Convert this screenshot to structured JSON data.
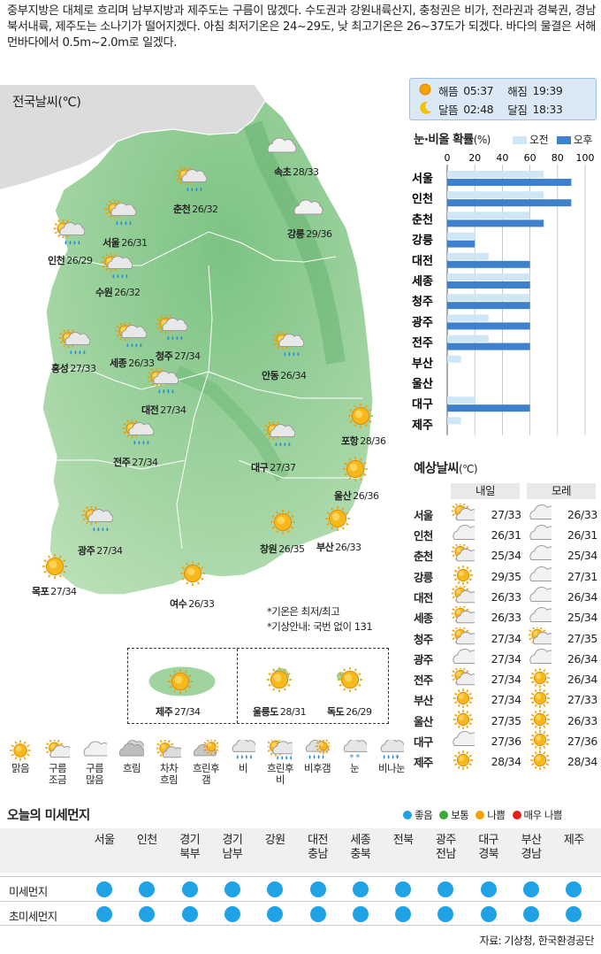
{
  "intro": "중부지방은 대체로 흐리며 남부지방과 제주도는 구름이 많겠다. 수도권과 강원내륙산지, 충청권은 비가, 전라권과 경북권, 경남북서내륙, 제주도는 소나기가 떨어지겠다. 아침 최저기온은 24~29도, 낮 최고기온은 26~37도가 되겠다. 바다의 물결은 서해 먼바다에서 0.5m~2.0m로 일겠다.",
  "map": {
    "title": "전국날씨(℃)",
    "cities": [
      {
        "name": "속초",
        "temp": "28/33",
        "icon": "cloudy"
      },
      {
        "name": "춘천",
        "temp": "26/32",
        "icon": "sun-cloud-rain"
      },
      {
        "name": "서울",
        "temp": "26/31",
        "icon": "sun-cloud-rain"
      },
      {
        "name": "인천",
        "temp": "26/29",
        "icon": "sun-cloud-rain"
      },
      {
        "name": "강릉",
        "temp": "29/36",
        "icon": "cloudy"
      },
      {
        "name": "수원",
        "temp": "26/32",
        "icon": "sun-cloud-rain"
      },
      {
        "name": "홍성",
        "temp": "27/33",
        "icon": "sun-cloud-rain"
      },
      {
        "name": "세종",
        "temp": "26/33",
        "icon": "sun-cloud-rain"
      },
      {
        "name": "청주",
        "temp": "27/34",
        "icon": "sun-cloud-rain"
      },
      {
        "name": "안동",
        "temp": "26/34",
        "icon": "sun-cloud-rain"
      },
      {
        "name": "대전",
        "temp": "27/34",
        "icon": "sun-cloud-rain"
      },
      {
        "name": "포항",
        "temp": "28/36",
        "icon": "sunny"
      },
      {
        "name": "전주",
        "temp": "27/34",
        "icon": "sun-cloud-rain"
      },
      {
        "name": "대구",
        "temp": "27/37",
        "icon": "sun-cloud-rain"
      },
      {
        "name": "울산",
        "temp": "26/36",
        "icon": "sunny"
      },
      {
        "name": "광주",
        "temp": "27/34",
        "icon": "sun-cloud-rain"
      },
      {
        "name": "창원",
        "temp": "26/35",
        "icon": "sunny"
      },
      {
        "name": "부산",
        "temp": "26/33",
        "icon": "sunny"
      },
      {
        "name": "목포",
        "temp": "27/34",
        "icon": "sunny"
      },
      {
        "name": "여수",
        "temp": "26/33",
        "icon": "sunny"
      }
    ],
    "islands": [
      {
        "name": "제주",
        "temp": "27/34",
        "icon": "sunny"
      },
      {
        "name": "울릉도",
        "temp": "28/31",
        "icon": "sunny"
      },
      {
        "name": "독도",
        "temp": "26/29",
        "icon": "sunny"
      }
    ],
    "notes": [
      "*기온은 최저/최고",
      "*기상안내: 국번 없이 131"
    ]
  },
  "sun": {
    "sunrise_label": "해뜸",
    "sunrise": "05:37",
    "sunset_label": "해짐",
    "sunset": "19:39",
    "moonrise_label": "달뜸",
    "moonrise": "02:48",
    "moonset_label": "달짐",
    "moonset": "18:33"
  },
  "precip": {
    "title": "눈·비올 확률",
    "unit": "(%)",
    "legend_am": "오전",
    "legend_pm": "오후",
    "colors": {
      "am": "#cfe6f5",
      "pm": "#3f80cc"
    },
    "chart_data": {
      "type": "bar",
      "orientation": "horizontal",
      "xlim": [
        0,
        100
      ],
      "ticks": [
        "0",
        "20",
        "40",
        "60",
        "80",
        "100"
      ],
      "categories": [
        "서울",
        "인천",
        "춘천",
        "강릉",
        "대전",
        "세종",
        "청주",
        "광주",
        "전주",
        "부산",
        "울산",
        "대구",
        "제주"
      ],
      "series": [
        {
          "name": "오전",
          "values": [
            70,
            70,
            60,
            20,
            30,
            60,
            60,
            30,
            30,
            10,
            0,
            20,
            10
          ]
        },
        {
          "name": "오후",
          "values": [
            90,
            90,
            70,
            20,
            60,
            60,
            60,
            60,
            60,
            0,
            0,
            60,
            0
          ]
        }
      ]
    }
  },
  "forecast": {
    "title": "예상날씨",
    "unit": "(℃)",
    "day1": "내일",
    "day2": "모레",
    "rows": [
      {
        "city": "서울",
        "d1_icon": "sun-cloud",
        "d1": "27/33",
        "d2_icon": "cloudy",
        "d2": "26/33"
      },
      {
        "city": "인천",
        "d1_icon": "cloudy",
        "d1": "26/31",
        "d2_icon": "cloudy",
        "d2": "26/31"
      },
      {
        "city": "춘천",
        "d1_icon": "sun-cloud",
        "d1": "25/34",
        "d2_icon": "cloudy",
        "d2": "25/34"
      },
      {
        "city": "강릉",
        "d1_icon": "sunny",
        "d1": "29/35",
        "d2_icon": "cloudy",
        "d2": "27/31"
      },
      {
        "city": "대전",
        "d1_icon": "sun-cloud",
        "d1": "26/33",
        "d2_icon": "cloudy",
        "d2": "26/34"
      },
      {
        "city": "세종",
        "d1_icon": "sun-cloud",
        "d1": "26/33",
        "d2_icon": "cloudy",
        "d2": "25/34"
      },
      {
        "city": "청주",
        "d1_icon": "sun-cloud",
        "d1": "27/34",
        "d2_icon": "sun-cloud",
        "d2": "27/35"
      },
      {
        "city": "광주",
        "d1_icon": "cloudy",
        "d1": "27/34",
        "d2_icon": "cloudy",
        "d2": "26/34"
      },
      {
        "city": "전주",
        "d1_icon": "sun-cloud",
        "d1": "27/34",
        "d2_icon": "sunny",
        "d2": "26/34"
      },
      {
        "city": "부산",
        "d1_icon": "sunny",
        "d1": "27/34",
        "d2_icon": "sunny",
        "d2": "27/33"
      },
      {
        "city": "울산",
        "d1_icon": "sunny",
        "d1": "27/35",
        "d2_icon": "sunny",
        "d2": "26/33"
      },
      {
        "city": "대구",
        "d1_icon": "cloudy",
        "d1": "27/36",
        "d2_icon": "sunny",
        "d2": "27/36"
      },
      {
        "city": "제주",
        "d1_icon": "sunny",
        "d1": "28/34",
        "d2_icon": "sunny",
        "d2": "28/34"
      }
    ]
  },
  "icon_legend": [
    {
      "icon": "sunny",
      "lines": [
        "맑음"
      ]
    },
    {
      "icon": "sun-cloud",
      "lines": [
        "구름",
        "조금"
      ]
    },
    {
      "icon": "cloudy",
      "lines": [
        "구름",
        "많음"
      ]
    },
    {
      "icon": "overcast",
      "lines": [
        "흐림"
      ]
    },
    {
      "icon": "clearing",
      "lines": [
        "차차",
        "흐림"
      ]
    },
    {
      "icon": "overcast-clear",
      "lines": [
        "흐린후",
        "갬"
      ]
    },
    {
      "icon": "rain",
      "lines": [
        "비"
      ]
    },
    {
      "icon": "sun-cloud-rain",
      "lines": [
        "흐린후",
        "비"
      ]
    },
    {
      "icon": "rain-clear",
      "lines": [
        "비후갬"
      ]
    },
    {
      "icon": "snow",
      "lines": [
        "눈"
      ]
    },
    {
      "icon": "sleet",
      "lines": [
        "비나눈"
      ]
    }
  ],
  "dust": {
    "title": "오늘의 미세먼지",
    "legend": [
      {
        "label": "좋음",
        "color": "#1fa2e6"
      },
      {
        "label": "보통",
        "color": "#3aaa35"
      },
      {
        "label": "나쁨",
        "color": "#f5a300"
      },
      {
        "label": "매우 나쁨",
        "color": "#e3201b"
      }
    ],
    "regions": [
      [
        "서울"
      ],
      [
        "인천"
      ],
      [
        "경기",
        "북부"
      ],
      [
        "경기",
        "남부"
      ],
      [
        "강원"
      ],
      [
        "대전",
        "충남"
      ],
      [
        "세종",
        "충북"
      ],
      [
        "전북"
      ],
      [
        "광주",
        "전남"
      ],
      [
        "대구",
        "경북"
      ],
      [
        "부산",
        "경남"
      ],
      [
        "제주"
      ]
    ],
    "rows": [
      {
        "label": "미세먼지",
        "levels": [
          "좋음",
          "좋음",
          "좋음",
          "좋음",
          "좋음",
          "좋음",
          "좋음",
          "좋음",
          "좋음",
          "좋음",
          "좋음",
          "좋음"
        ]
      },
      {
        "label": "초미세먼지",
        "levels": [
          "좋음",
          "좋음",
          "좋음",
          "좋음",
          "좋음",
          "좋음",
          "좋음",
          "좋음",
          "좋음",
          "좋음",
          "좋음",
          "좋음"
        ]
      }
    ]
  },
  "source": "자료: 기상청, 한국환경공단"
}
